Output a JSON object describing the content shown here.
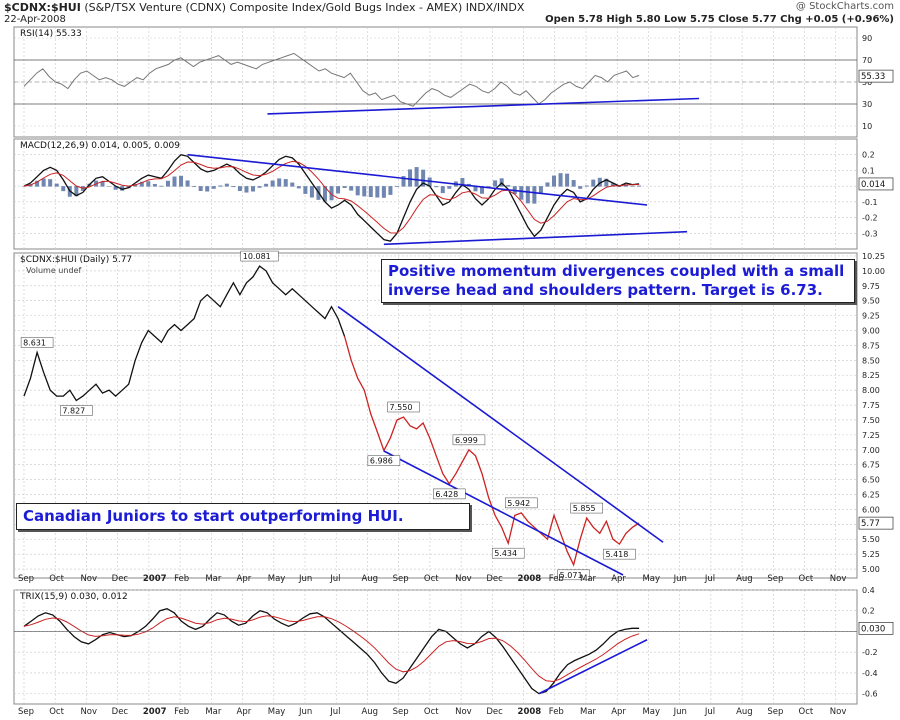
{
  "header": {
    "symbol": "$CDNX:$HUI",
    "description": "(S&P/TSX Venture (CDNX) Composite Index/Gold Bugs Index - AMEX)  INDX/INDX",
    "date": "22-Apr-2008",
    "credit": "@ StockCharts.com",
    "ohlc": "Open 5.78  High 5.80  Low 5.75  Close 5.77  Chg +0.05 (+0.96%)"
  },
  "chart_data": {
    "type": "line",
    "x_axis": {
      "labels": [
        "Sep",
        "Oct",
        "Nov",
        "Dec",
        "2007",
        "Feb",
        "Mar",
        "Apr",
        "May",
        "Jun",
        "Jul",
        "Aug",
        "Sep",
        "Oct",
        "Nov",
        "Dec",
        "2008",
        "Feb",
        "Mar",
        "Apr",
        "May",
        "Jun",
        "Jul",
        "Aug",
        "Sep",
        "Oct",
        "Nov"
      ],
      "bold_labels": [
        "2007",
        "2008"
      ]
    },
    "panels": [
      {
        "id": "rsi",
        "label": "RSI(14) 55.33",
        "ylim": [
          0,
          100
        ],
        "yticks": [
          "90",
          "70",
          "50",
          "30",
          "10"
        ],
        "levels": [
          70,
          30
        ],
        "last_value": "55.33",
        "values": [
          46,
          52,
          58,
          62,
          55,
          50,
          48,
          44,
          52,
          58,
          60,
          56,
          52,
          54,
          52,
          48,
          46,
          50,
          54,
          52,
          58,
          62,
          64,
          66,
          70,
          72,
          68,
          64,
          68,
          70,
          72,
          74,
          70,
          66,
          68,
          66,
          64,
          62,
          66,
          68,
          70,
          72,
          74,
          76,
          72,
          68,
          64,
          60,
          62,
          58,
          56,
          54,
          58,
          50,
          42,
          38,
          40,
          34,
          36,
          38,
          32,
          30,
          28,
          34,
          40,
          44,
          42,
          38,
          36,
          40,
          44,
          48,
          46,
          42,
          40,
          44,
          50,
          46,
          40,
          38,
          42,
          36,
          30,
          34,
          40,
          44,
          48,
          50,
          46,
          44,
          50,
          56,
          54,
          50,
          56,
          58,
          60,
          54,
          56
        ],
        "trendlines": [
          {
            "x": [
              195,
              321
            ],
            "y": [
              21,
              35
            ]
          }
        ]
      },
      {
        "id": "macd",
        "label": "MACD(12,26,9) 0.014, 0.005, 0.009",
        "ylim": [
          -0.4,
          0.3
        ],
        "yticks": [
          "0.2",
          "0.1",
          "0.0",
          "-0.1",
          "-0.2",
          "-0.3"
        ],
        "last_value": "0.014",
        "macd": [
          0.0,
          0.02,
          0.06,
          0.1,
          0.12,
          0.1,
          0.04,
          -0.03,
          -0.06,
          -0.04,
          0.01,
          0.05,
          0.06,
          0.03,
          0.0,
          -0.02,
          -0.01,
          0.02,
          0.05,
          0.07,
          0.06,
          0.05,
          0.1,
          0.16,
          0.2,
          0.19,
          0.15,
          0.11,
          0.09,
          0.1,
          0.12,
          0.14,
          0.12,
          0.08,
          0.05,
          0.04,
          0.06,
          0.09,
          0.13,
          0.17,
          0.19,
          0.18,
          0.14,
          0.08,
          0.02,
          -0.04,
          -0.1,
          -0.14,
          -0.12,
          -0.09,
          -0.12,
          -0.18,
          -0.22,
          -0.26,
          -0.3,
          -0.34,
          -0.35,
          -0.3,
          -0.2,
          -0.1,
          -0.02,
          0.02,
          0.0,
          -0.06,
          -0.12,
          -0.1,
          -0.04,
          0.01,
          -0.02,
          -0.08,
          -0.12,
          -0.08,
          -0.02,
          0.02,
          -0.02,
          -0.1,
          -0.18,
          -0.26,
          -0.32,
          -0.28,
          -0.2,
          -0.12,
          -0.06,
          -0.02,
          -0.04,
          -0.1,
          -0.08,
          -0.02,
          0.02,
          0.04,
          0.02,
          0.0,
          0.02,
          0.01,
          0.014
        ],
        "trendlines": [
          {
            "x": [
              143,
              314
            ],
            "y": [
              0.2,
              -0.12
            ]
          },
          {
            "x": [
              206,
              335
            ],
            "y": [
              -0.37,
              -0.29
            ]
          }
        ]
      },
      {
        "id": "price",
        "label": "$CDNX:$HUI (Daily) 5.77",
        "sublabel": "Volume undef",
        "ylim": [
          4.85,
          10.3
        ],
        "yticks": [
          "10.25",
          "10.00",
          "9.75",
          "9.50",
          "9.25",
          "9.00",
          "8.75",
          "8.50",
          "8.25",
          "8.00",
          "7.75",
          "7.50",
          "7.25",
          "7.00",
          "6.75",
          "6.50",
          "6.25",
          "6.00",
          "5.75",
          "5.50",
          "5.25",
          "5.00"
        ],
        "last_value": "5.77",
        "values": [
          7.9,
          8.2,
          8.631,
          8.3,
          8.0,
          7.9,
          7.9,
          8.0,
          7.827,
          7.9,
          8.0,
          8.1,
          7.95,
          8.0,
          7.9,
          8.0,
          8.1,
          8.5,
          8.8,
          9.0,
          8.9,
          8.8,
          9.0,
          9.1,
          9.0,
          9.1,
          9.2,
          9.5,
          9.6,
          9.5,
          9.4,
          9.6,
          9.8,
          9.6,
          9.8,
          9.9,
          10.081,
          10.0,
          9.8,
          9.7,
          9.6,
          9.7,
          9.6,
          9.5,
          9.4,
          9.3,
          9.2,
          9.4,
          9.2,
          8.9,
          8.5,
          8.2,
          8.0,
          7.6,
          7.3,
          6.986,
          7.2,
          7.5,
          7.55,
          7.4,
          7.35,
          7.45,
          7.2,
          6.9,
          6.6,
          6.428,
          6.6,
          6.8,
          6.999,
          6.9,
          6.6,
          6.2,
          5.9,
          5.7,
          5.434,
          5.9,
          5.942,
          5.8,
          5.7,
          5.6,
          5.5,
          5.9,
          5.6,
          5.3,
          5.071,
          5.5,
          5.855,
          5.7,
          5.6,
          5.8,
          5.5,
          5.418,
          5.6,
          5.7,
          5.77
        ],
        "labels": [
          {
            "i": 2,
            "text": "8.631",
            "pos": "above"
          },
          {
            "i": 8,
            "text": "7.827",
            "pos": "below"
          },
          {
            "i": 36,
            "text": "10.081",
            "pos": "above"
          },
          {
            "i": 55,
            "text": "6.986",
            "pos": "below"
          },
          {
            "i": 58,
            "text": "7.550",
            "pos": "above"
          },
          {
            "i": 65,
            "text": "6.428",
            "pos": "below"
          },
          {
            "i": 68,
            "text": "6.999",
            "pos": "above"
          },
          {
            "i": 74,
            "text": "5.434",
            "pos": "below"
          },
          {
            "i": 76,
            "text": "5.942",
            "pos": "above"
          },
          {
            "i": 84,
            "text": "5.071",
            "pos": "below"
          },
          {
            "i": 86,
            "text": "5.855",
            "pos": "above"
          },
          {
            "i": 91,
            "text": "5.418",
            "pos": "below"
          }
        ],
        "trendlines": [
          {
            "x": [
              183,
              340
            ],
            "y": [
              9.4,
              5.45
            ]
          },
          {
            "x": [
              209,
              315
            ],
            "y": [
              6.98,
              4.9
            ]
          }
        ]
      },
      {
        "id": "trix",
        "label": "TRIX(15,9) 0.030, 0.012",
        "ylim": [
          -0.7,
          0.4
        ],
        "yticks": [
          "0.4",
          "0.2",
          "0.0",
          "-0.2",
          "-0.4",
          "-0.6"
        ],
        "last_value": "0.030",
        "values": [
          0.05,
          0.1,
          0.15,
          0.18,
          0.16,
          0.1,
          0.02,
          -0.05,
          -0.1,
          -0.12,
          -0.08,
          -0.03,
          -0.01,
          -0.03,
          -0.05,
          -0.04,
          0.0,
          0.05,
          0.12,
          0.2,
          0.22,
          0.18,
          0.1,
          0.05,
          0.02,
          0.05,
          0.12,
          0.18,
          0.16,
          0.1,
          0.06,
          0.08,
          0.15,
          0.2,
          0.18,
          0.12,
          0.08,
          0.05,
          0.08,
          0.13,
          0.17,
          0.18,
          0.14,
          0.08,
          0.02,
          -0.04,
          -0.1,
          -0.16,
          -0.22,
          -0.3,
          -0.4,
          -0.48,
          -0.5,
          -0.45,
          -0.35,
          -0.25,
          -0.15,
          -0.05,
          0.02,
          0.0,
          -0.06,
          -0.12,
          -0.16,
          -0.12,
          -0.05,
          0.0,
          -0.06,
          -0.15,
          -0.25,
          -0.35,
          -0.45,
          -0.55,
          -0.6,
          -0.58,
          -0.5,
          -0.4,
          -0.32,
          -0.28,
          -0.25,
          -0.22,
          -0.18,
          -0.12,
          -0.05,
          0.0,
          0.02,
          0.03,
          0.03
        ],
        "trendlines": [
          {
            "x": [
              281,
              325
            ],
            "y": [
              -0.6,
              -0.08
            ]
          }
        ]
      }
    ],
    "annotations": [
      "Positive momentum divergences coupled with a small inverse head and shoulders pattern. Target is 6.73.",
      "Canadian Juniors to start outperforming HUI."
    ]
  },
  "colors": {
    "grid": "#c8c8c8",
    "panel_bg": "#ffffff",
    "line": "#111111",
    "signal": "#cc2222",
    "trend": "#1a1ad4",
    "rsi_line": "#777777",
    "hist": "#6e86b0",
    "annotation_text": "#1c1cd6"
  }
}
